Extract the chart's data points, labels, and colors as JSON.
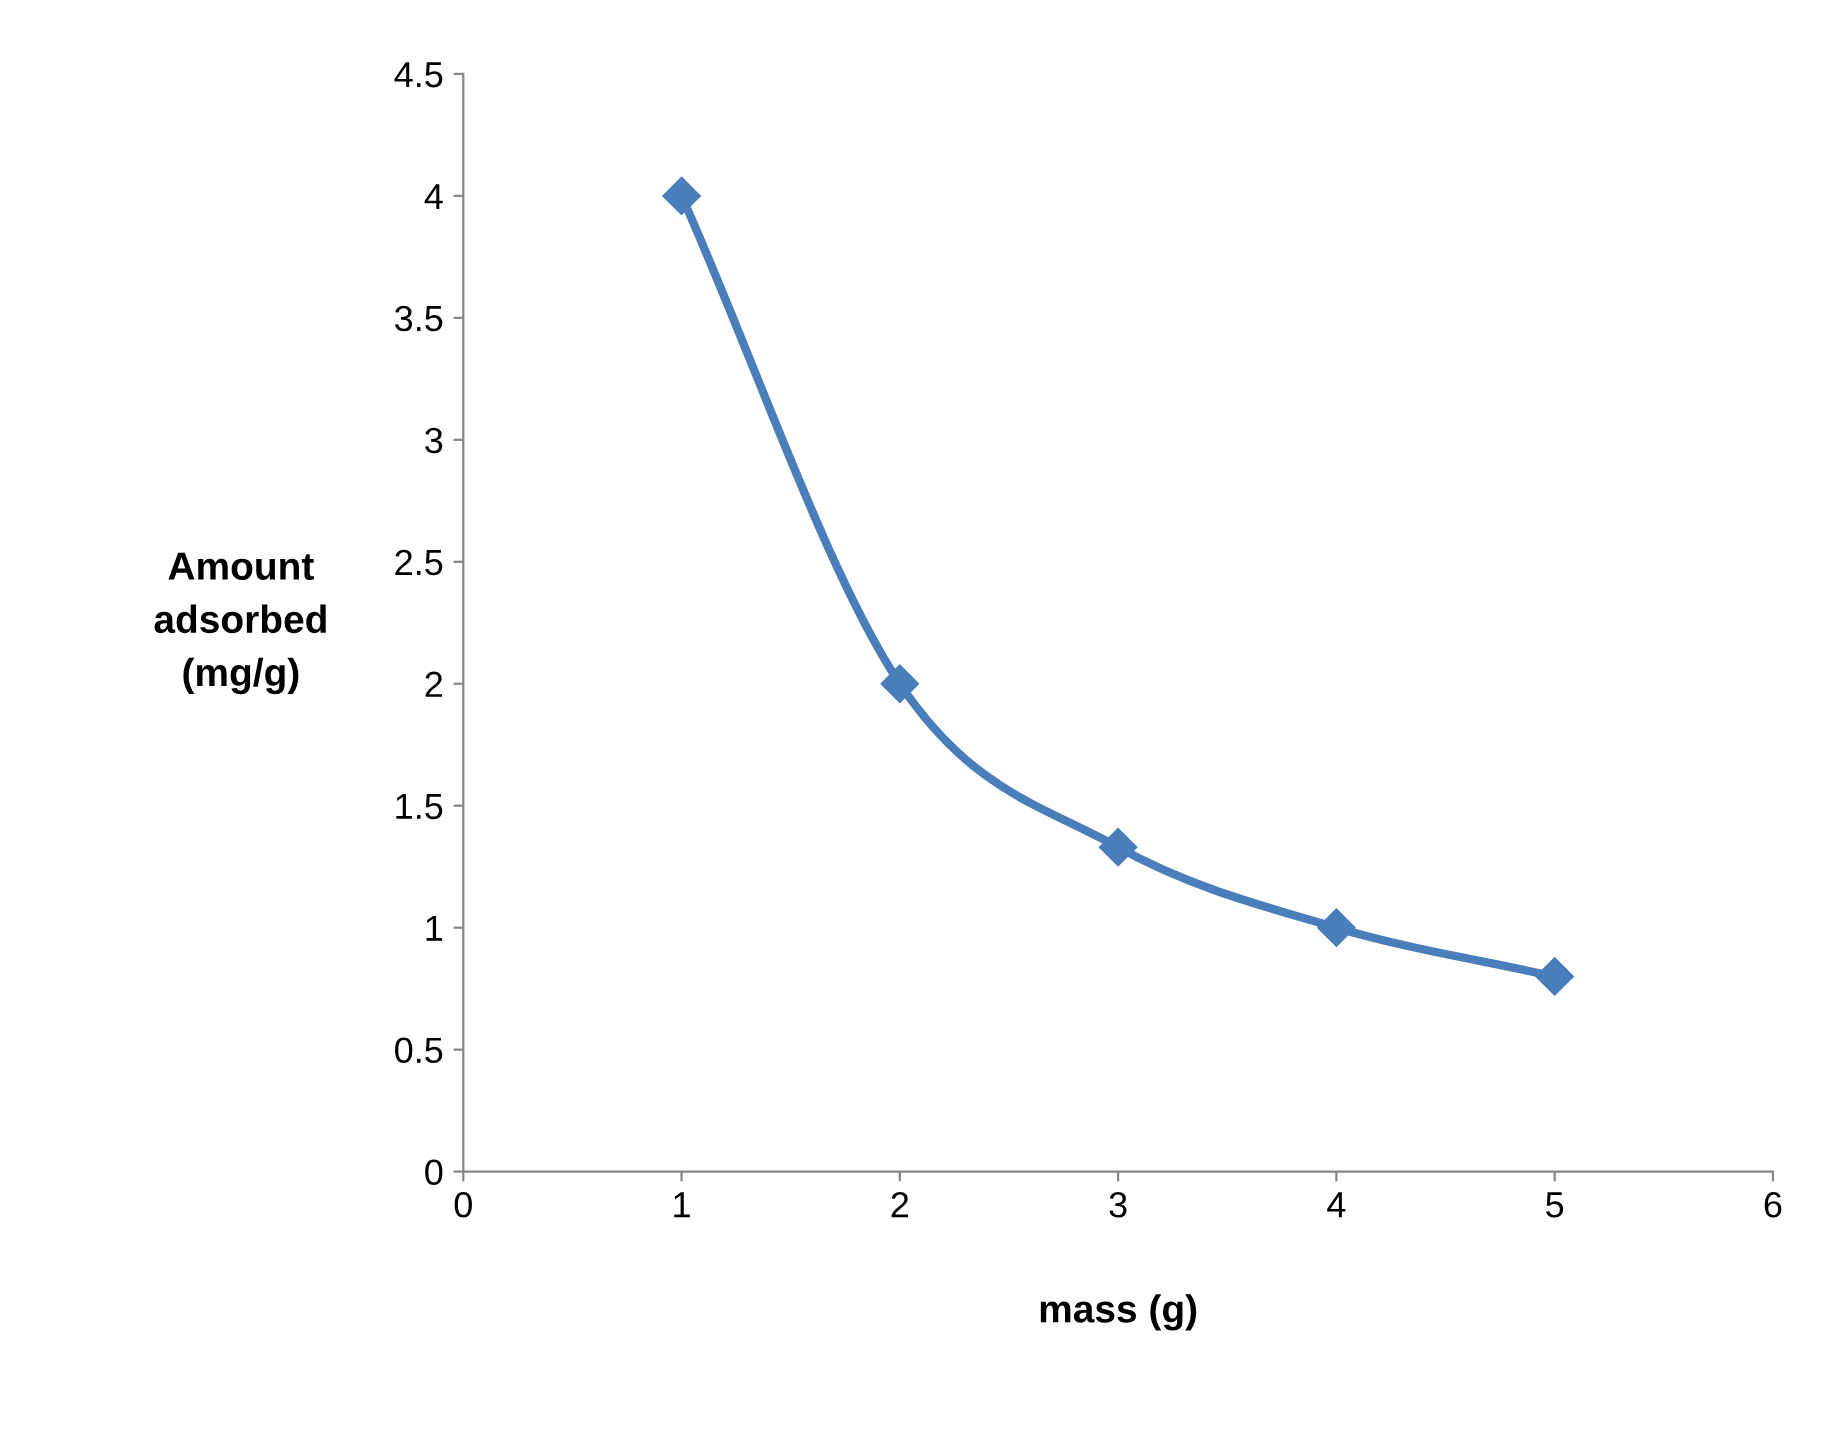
{
  "chart_data": {
    "type": "line",
    "xlabel": "mass (g)",
    "ylabel": "Amount\nadsorbed\n(mg/g)",
    "x": [
      1,
      2,
      3,
      4,
      5
    ],
    "series": [
      {
        "color": "#4a7ebb",
        "values": [
          4,
          2,
          1.33,
          1,
          0.8
        ]
      }
    ],
    "xlim": [
      0,
      6
    ],
    "xticks": [
      0,
      1,
      2,
      3,
      4,
      5,
      6
    ],
    "ylim": [
      0,
      4.5
    ],
    "yticks": [
      0,
      0.5,
      1,
      1.5,
      2,
      2.5,
      3,
      3.5,
      4,
      4.5
    ],
    "marker": "diamond",
    "line_style": "solid",
    "grid": false,
    "legend": false
  }
}
